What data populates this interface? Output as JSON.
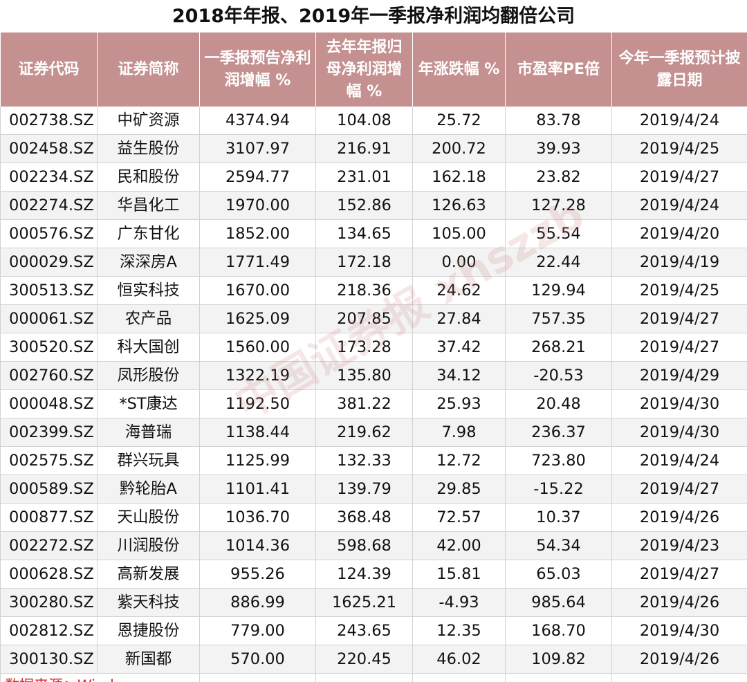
{
  "title": "2018年年报、2019年一季报净利润均翻倍公司",
  "headers": [
    "证券代码",
    "证券简称",
    "一季报预告净利润增幅 %",
    "去年年报归母净利润增幅 %",
    "年涨跌幅 %",
    "市盈率PE倍",
    "今年一季报预计披露日期"
  ],
  "rows": [
    [
      "002738.SZ",
      "中矿资源",
      "4374.94",
      "104.08",
      "25.72",
      "83.78",
      "2019/4/24"
    ],
    [
      "002458.SZ",
      "益生股份",
      "3107.97",
      "216.91",
      "200.72",
      "39.93",
      "2019/4/25"
    ],
    [
      "002234.SZ",
      "民和股份",
      "2594.77",
      "231.01",
      "162.18",
      "23.82",
      "2019/4/27"
    ],
    [
      "002274.SZ",
      "华昌化工",
      "1970.00",
      "152.86",
      "126.63",
      "127.28",
      "2019/4/24"
    ],
    [
      "000576.SZ",
      "广东甘化",
      "1852.00",
      "134.65",
      "105.00",
      "55.54",
      "2019/4/20"
    ],
    [
      "000029.SZ",
      "深深房A",
      "1771.49",
      "172.18",
      "0.00",
      "22.44",
      "2019/4/19"
    ],
    [
      "300513.SZ",
      "恒实科技",
      "1670.00",
      "218.36",
      "24.62",
      "129.94",
      "2019/4/25"
    ],
    [
      "000061.SZ",
      "农产品",
      "1625.09",
      "207.85",
      "27.84",
      "757.35",
      "2019/4/27"
    ],
    [
      "300520.SZ",
      "科大国创",
      "1560.00",
      "173.28",
      "37.42",
      "268.21",
      "2019/4/27"
    ],
    [
      "002760.SZ",
      "凤形股份",
      "1322.19",
      "135.80",
      "34.12",
      "-20.53",
      "2019/4/29"
    ],
    [
      "000048.SZ",
      "*ST康达",
      "1192.50",
      "381.22",
      "25.93",
      "20.48",
      "2019/4/30"
    ],
    [
      "002399.SZ",
      "海普瑞",
      "1138.44",
      "219.62",
      "7.98",
      "236.37",
      "2019/4/30"
    ],
    [
      "002575.SZ",
      "群兴玩具",
      "1125.99",
      "132.33",
      "12.72",
      "723.80",
      "2019/4/24"
    ],
    [
      "000589.SZ",
      "黔轮胎A",
      "1101.41",
      "139.79",
      "29.85",
      "-15.22",
      "2019/4/27"
    ],
    [
      "000877.SZ",
      "天山股份",
      "1036.70",
      "368.48",
      "72.57",
      "10.37",
      "2019/4/26"
    ],
    [
      "002272.SZ",
      "川润股份",
      "1014.36",
      "598.68",
      "42.00",
      "54.34",
      "2019/4/23"
    ],
    [
      "000628.SZ",
      "高新发展",
      "955.26",
      "124.39",
      "15.81",
      "65.03",
      "2019/4/27"
    ],
    [
      "300280.SZ",
      "紫天科技",
      "886.99",
      "1625.21",
      "-4.93",
      "985.64",
      "2019/4/26"
    ],
    [
      "002812.SZ",
      "恩捷股份",
      "779.00",
      "243.65",
      "12.35",
      "168.70",
      "2019/4/30"
    ],
    [
      "300130.SZ",
      "新国都",
      "570.00",
      "220.45",
      "46.02",
      "109.82",
      "2019/4/26"
    ]
  ],
  "source": "数据来源：Wind",
  "watermark": "中国证券报 xhszzb",
  "colors": {
    "header_bg": "#c49090",
    "header_text": "#ffffff",
    "source_text": "#d9272e",
    "stripe": "#f3f3f3"
  }
}
